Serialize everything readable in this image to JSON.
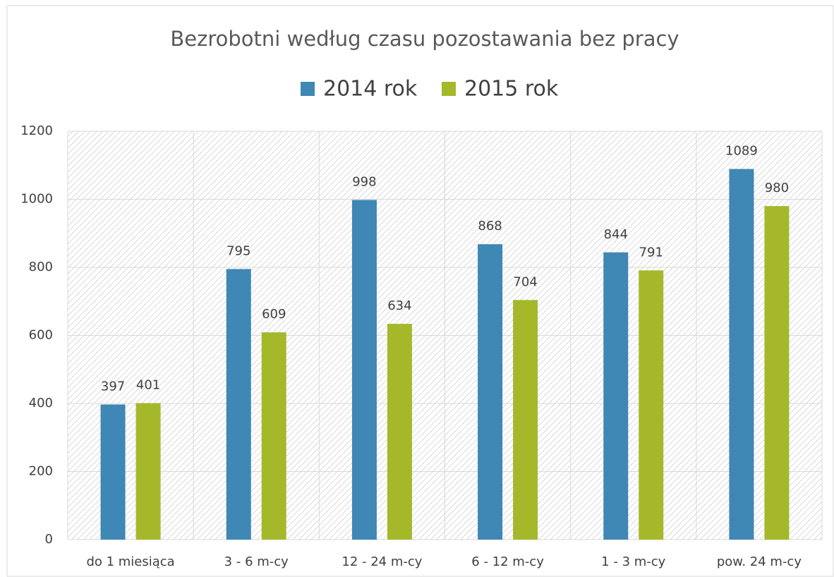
{
  "chart_data": {
    "type": "bar",
    "title": "Bezrobotni według czasu pozostawania bez pracy",
    "categories": [
      "do 1 miesiąca",
      "3 - 6 m-cy",
      "12 - 24 m-cy",
      "6 - 12 m-cy",
      "1 - 3 m-cy",
      "pow. 24 m-cy"
    ],
    "series": [
      {
        "name": "2014 rok",
        "color": "#3f87b4",
        "values": [
          397,
          795,
          998,
          868,
          844,
          1089
        ]
      },
      {
        "name": "2015 rok",
        "color": "#a5b82a",
        "values": [
          401,
          609,
          634,
          704,
          791,
          980
        ]
      }
    ],
    "ylim": [
      0,
      1200
    ],
    "yticks": [
      0,
      200,
      400,
      600,
      800,
      1000,
      1200
    ],
    "grid": true,
    "legend": "top"
  }
}
